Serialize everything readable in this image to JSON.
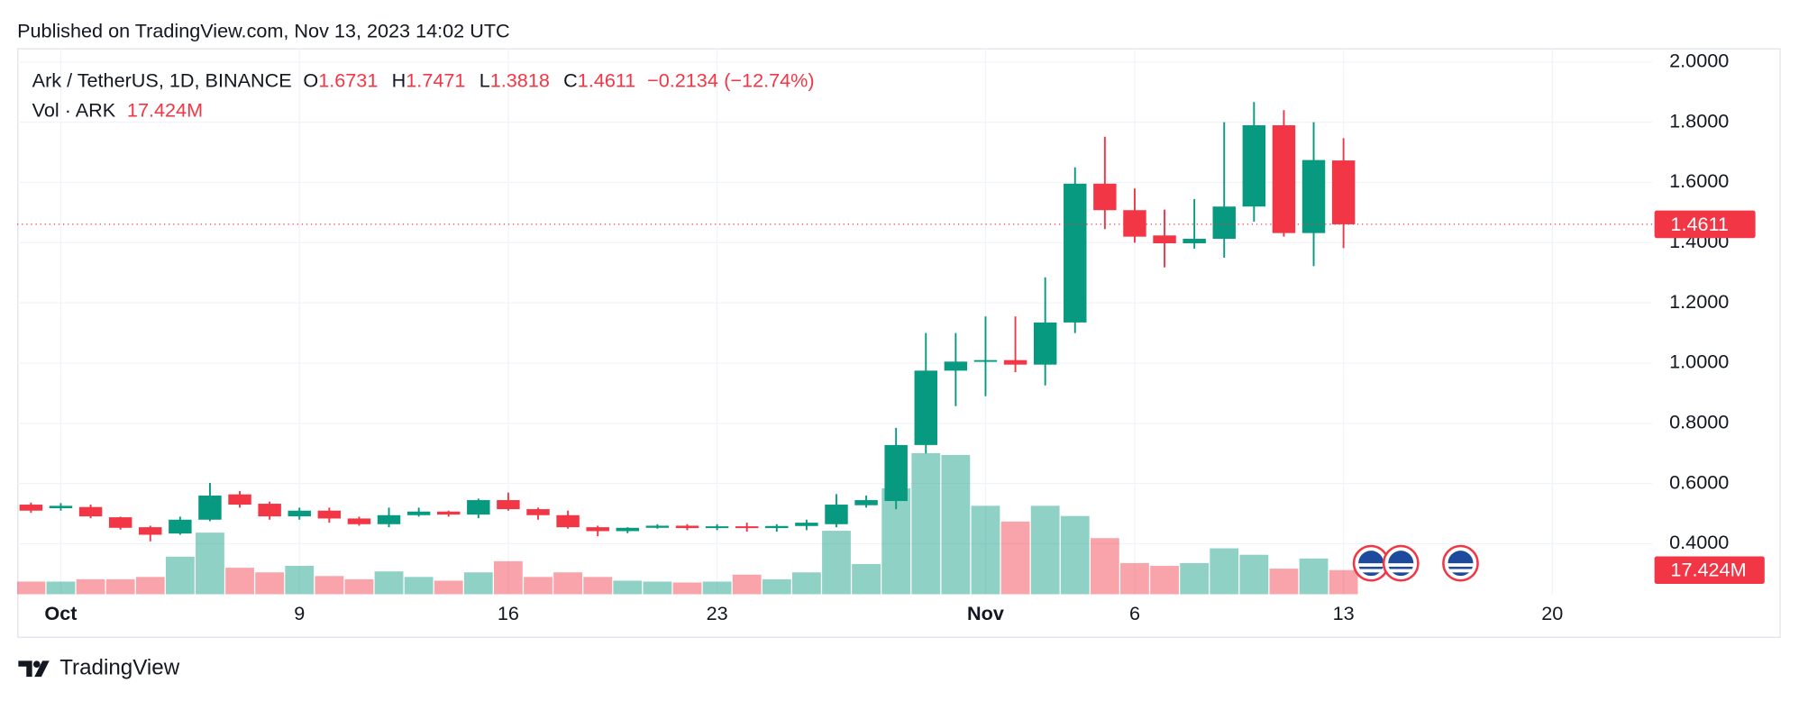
{
  "published": "Published on TradingView.com, Nov 13, 2023 14:02 UTC",
  "brand": "TradingView",
  "chart_data": {
    "type": "candlestick",
    "title": "Ark / TetherUS, 1D, BINANCE",
    "ohlc_labels": [
      "O",
      "H",
      "L",
      "C"
    ],
    "change": {
      "value": -0.2134,
      "label": "−0.2134"
    },
    "change_pct": {
      "value": -12.74,
      "label": "(−12.74%)"
    },
    "volume_title": "Vol · ARK",
    "volume_label": "17.424M",
    "up_color": "#089981",
    "down_color": "#f23645",
    "grid": true,
    "x": [
      "2023-09-30",
      "2023-10-01",
      "2023-10-02",
      "2023-10-03",
      "2023-10-04",
      "2023-10-05",
      "2023-10-06",
      "2023-10-07",
      "2023-10-08",
      "2023-10-09",
      "2023-10-10",
      "2023-10-11",
      "2023-10-12",
      "2023-10-13",
      "2023-10-14",
      "2023-10-15",
      "2023-10-16",
      "2023-10-17",
      "2023-10-18",
      "2023-10-19",
      "2023-10-20",
      "2023-10-21",
      "2023-10-22",
      "2023-10-23",
      "2023-10-24",
      "2023-10-25",
      "2023-10-26",
      "2023-10-27",
      "2023-10-28",
      "2023-10-29",
      "2023-10-30",
      "2023-10-31",
      "2023-11-01",
      "2023-11-02",
      "2023-11-03",
      "2023-11-04",
      "2023-11-05",
      "2023-11-06",
      "2023-11-07",
      "2023-11-08",
      "2023-11-09",
      "2023-11-10",
      "2023-11-11",
      "2023-11-12",
      "2023-11-13"
    ],
    "open": [
      0.53,
      0.518,
      0.522,
      0.488,
      0.455,
      0.434,
      0.48,
      0.564,
      0.533,
      0.491,
      0.51,
      0.484,
      0.465,
      0.495,
      0.507,
      0.497,
      0.545,
      0.515,
      0.495,
      0.455,
      0.442,
      0.453,
      0.46,
      0.452,
      0.458,
      0.452,
      0.459,
      0.465,
      0.528,
      0.542,
      0.728,
      0.975,
      1.005,
      1.01,
      0.995,
      1.135,
      1.596,
      1.508,
      1.424,
      1.398,
      1.413,
      1.52,
      1.79,
      1.432,
      1.6731
    ],
    "high": [
      0.537,
      0.535,
      0.53,
      0.49,
      0.46,
      0.49,
      0.602,
      0.575,
      0.54,
      0.52,
      0.52,
      0.49,
      0.52,
      0.52,
      0.51,
      0.55,
      0.57,
      0.52,
      0.51,
      0.46,
      0.455,
      0.465,
      0.465,
      0.465,
      0.47,
      0.465,
      0.48,
      0.565,
      0.56,
      0.785,
      1.1,
      1.1,
      1.155,
      1.155,
      1.285,
      1.65,
      1.752,
      1.58,
      1.51,
      1.545,
      1.8,
      1.867,
      1.84,
      1.8,
      1.7471
    ],
    "low": [
      0.503,
      0.51,
      0.485,
      0.447,
      0.408,
      0.43,
      0.475,
      0.52,
      0.48,
      0.48,
      0.47,
      0.46,
      0.455,
      0.49,
      0.49,
      0.485,
      0.51,
      0.48,
      0.45,
      0.425,
      0.435,
      0.45,
      0.445,
      0.445,
      0.44,
      0.44,
      0.445,
      0.455,
      0.52,
      0.515,
      0.7,
      0.857,
      0.89,
      0.97,
      0.926,
      1.1,
      1.445,
      1.4,
      1.318,
      1.38,
      1.35,
      1.47,
      1.42,
      1.322,
      1.3818
    ],
    "close": [
      0.51,
      0.526,
      0.491,
      0.453,
      0.43,
      0.48,
      0.56,
      0.53,
      0.491,
      0.51,
      0.484,
      0.465,
      0.495,
      0.507,
      0.497,
      0.545,
      0.515,
      0.495,
      0.455,
      0.442,
      0.453,
      0.46,
      0.452,
      0.458,
      0.452,
      0.459,
      0.47,
      0.53,
      0.545,
      0.728,
      0.975,
      1.005,
      1.01,
      0.995,
      1.135,
      1.596,
      1.508,
      1.42,
      1.398,
      1.413,
      1.52,
      1.79,
      1.432,
      1.6745,
      1.4611
    ],
    "volume": [
      5,
      5,
      7.5,
      7.5,
      10,
      32,
      58,
      20,
      15,
      22,
      11,
      7.5,
      16,
      10,
      6,
      15,
      27,
      10,
      15,
      10,
      6,
      5,
      4,
      5,
      12.5,
      7.5,
      15,
      60,
      24,
      106,
      144,
      142,
      87,
      70,
      87,
      76,
      52,
      25,
      22,
      25,
      41,
      34,
      19,
      30,
      17.424
    ],
    "xlim": [
      "2023-09-29",
      "2023-11-24"
    ],
    "xticks": [
      {
        "value": "2023-10-01",
        "label": "Oct"
      },
      {
        "value": "2023-10-09",
        "label": "9"
      },
      {
        "value": "2023-10-16",
        "label": "16"
      },
      {
        "value": "2023-10-23",
        "label": "23"
      },
      {
        "value": "2023-11-01",
        "label": "Nov"
      },
      {
        "value": "2023-11-06",
        "label": "6"
      },
      {
        "value": "2023-11-13",
        "label": "13"
      },
      {
        "value": "2023-11-20",
        "label": "20"
      }
    ],
    "ylim": [
      0.2324,
      2.0457
    ],
    "yticks": [
      {
        "value": 0.4,
        "label": "0.4000"
      },
      {
        "value": 0.6,
        "label": "0.6000"
      },
      {
        "value": 0.8,
        "label": "0.8000"
      },
      {
        "value": 1,
        "label": "1.0000"
      },
      {
        "value": 1.2,
        "label": "1.2000"
      },
      {
        "value": 1.4,
        "label": "1.4000"
      },
      {
        "value": 1.6,
        "label": "1.6000"
      },
      {
        "value": 1.8,
        "label": "1.8000"
      },
      {
        "value": 2,
        "label": "2.0000"
      }
    ]
  }
}
